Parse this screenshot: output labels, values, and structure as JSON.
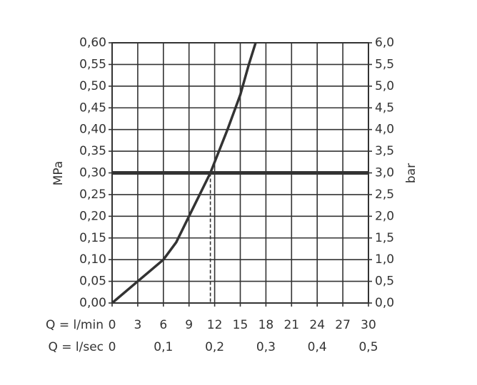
{
  "chart_data": {
    "type": "line",
    "xlabel": "Q = l/min",
    "x2label": "Q = l/sec",
    "ylabel": "MPa",
    "y2label": "bar",
    "xlim": [
      0,
      30
    ],
    "xticks": [
      0,
      3,
      6,
      9,
      12,
      15,
      18,
      21,
      24,
      27,
      30
    ],
    "x2lim": [
      0,
      0.5
    ],
    "x2ticks": [
      0,
      {
        "value": 0.1,
        "label": "0,1"
      },
      {
        "value": 0.2,
        "label": "0,2"
      },
      {
        "value": 0.3,
        "label": "0,3"
      },
      {
        "value": 0.4,
        "label": "0,4"
      },
      {
        "value": 0.5,
        "label": "0,5"
      }
    ],
    "ylim": [
      0,
      0.6
    ],
    "yticks": [
      {
        "value": 0,
        "label": "0,00"
      },
      {
        "value": 0.05,
        "label": "0,05"
      },
      {
        "value": 0.1,
        "label": "0,10"
      },
      {
        "value": 0.15,
        "label": "0,15"
      },
      {
        "value": 0.2,
        "label": "0,20"
      },
      {
        "value": 0.25,
        "label": "0,25"
      },
      {
        "value": 0.3,
        "label": "0,30"
      },
      {
        "value": 0.35,
        "label": "0,35"
      },
      {
        "value": 0.4,
        "label": "0,40"
      },
      {
        "value": 0.45,
        "label": "0,45"
      },
      {
        "value": 0.5,
        "label": "0,50"
      },
      {
        "value": 0.55,
        "label": "0,55"
      },
      {
        "value": 0.6,
        "label": "0,60"
      }
    ],
    "y2lim": [
      0,
      6
    ],
    "y2ticks": [
      {
        "value": 0,
        "label": "0,0"
      },
      {
        "value": 0.5,
        "label": "0,5"
      },
      {
        "value": 1,
        "label": "1,0"
      },
      {
        "value": 1.5,
        "label": "1,5"
      },
      {
        "value": 2,
        "label": "2,0"
      },
      {
        "value": 2.5,
        "label": "2,5"
      },
      {
        "value": 3,
        "label": "3,0"
      },
      {
        "value": 3.5,
        "label": "3,5"
      },
      {
        "value": 4,
        "label": "4,0"
      },
      {
        "value": 4.5,
        "label": "4,5"
      },
      {
        "value": 5,
        "label": "5,0"
      },
      {
        "value": 5.5,
        "label": "5,5"
      },
      {
        "value": 6,
        "label": "6,0"
      }
    ],
    "grid": true,
    "color": "#333333",
    "x": [
      0,
      3,
      6,
      7.5,
      9,
      11.5,
      13.5,
      15,
      16,
      16.8
    ],
    "values": [
      0,
      0.05,
      0.1,
      0.14,
      0.2,
      0.3,
      0.4,
      0.48,
      0.55,
      0.6
    ],
    "reference_y": 0.3,
    "operating_x": 11.5
  }
}
